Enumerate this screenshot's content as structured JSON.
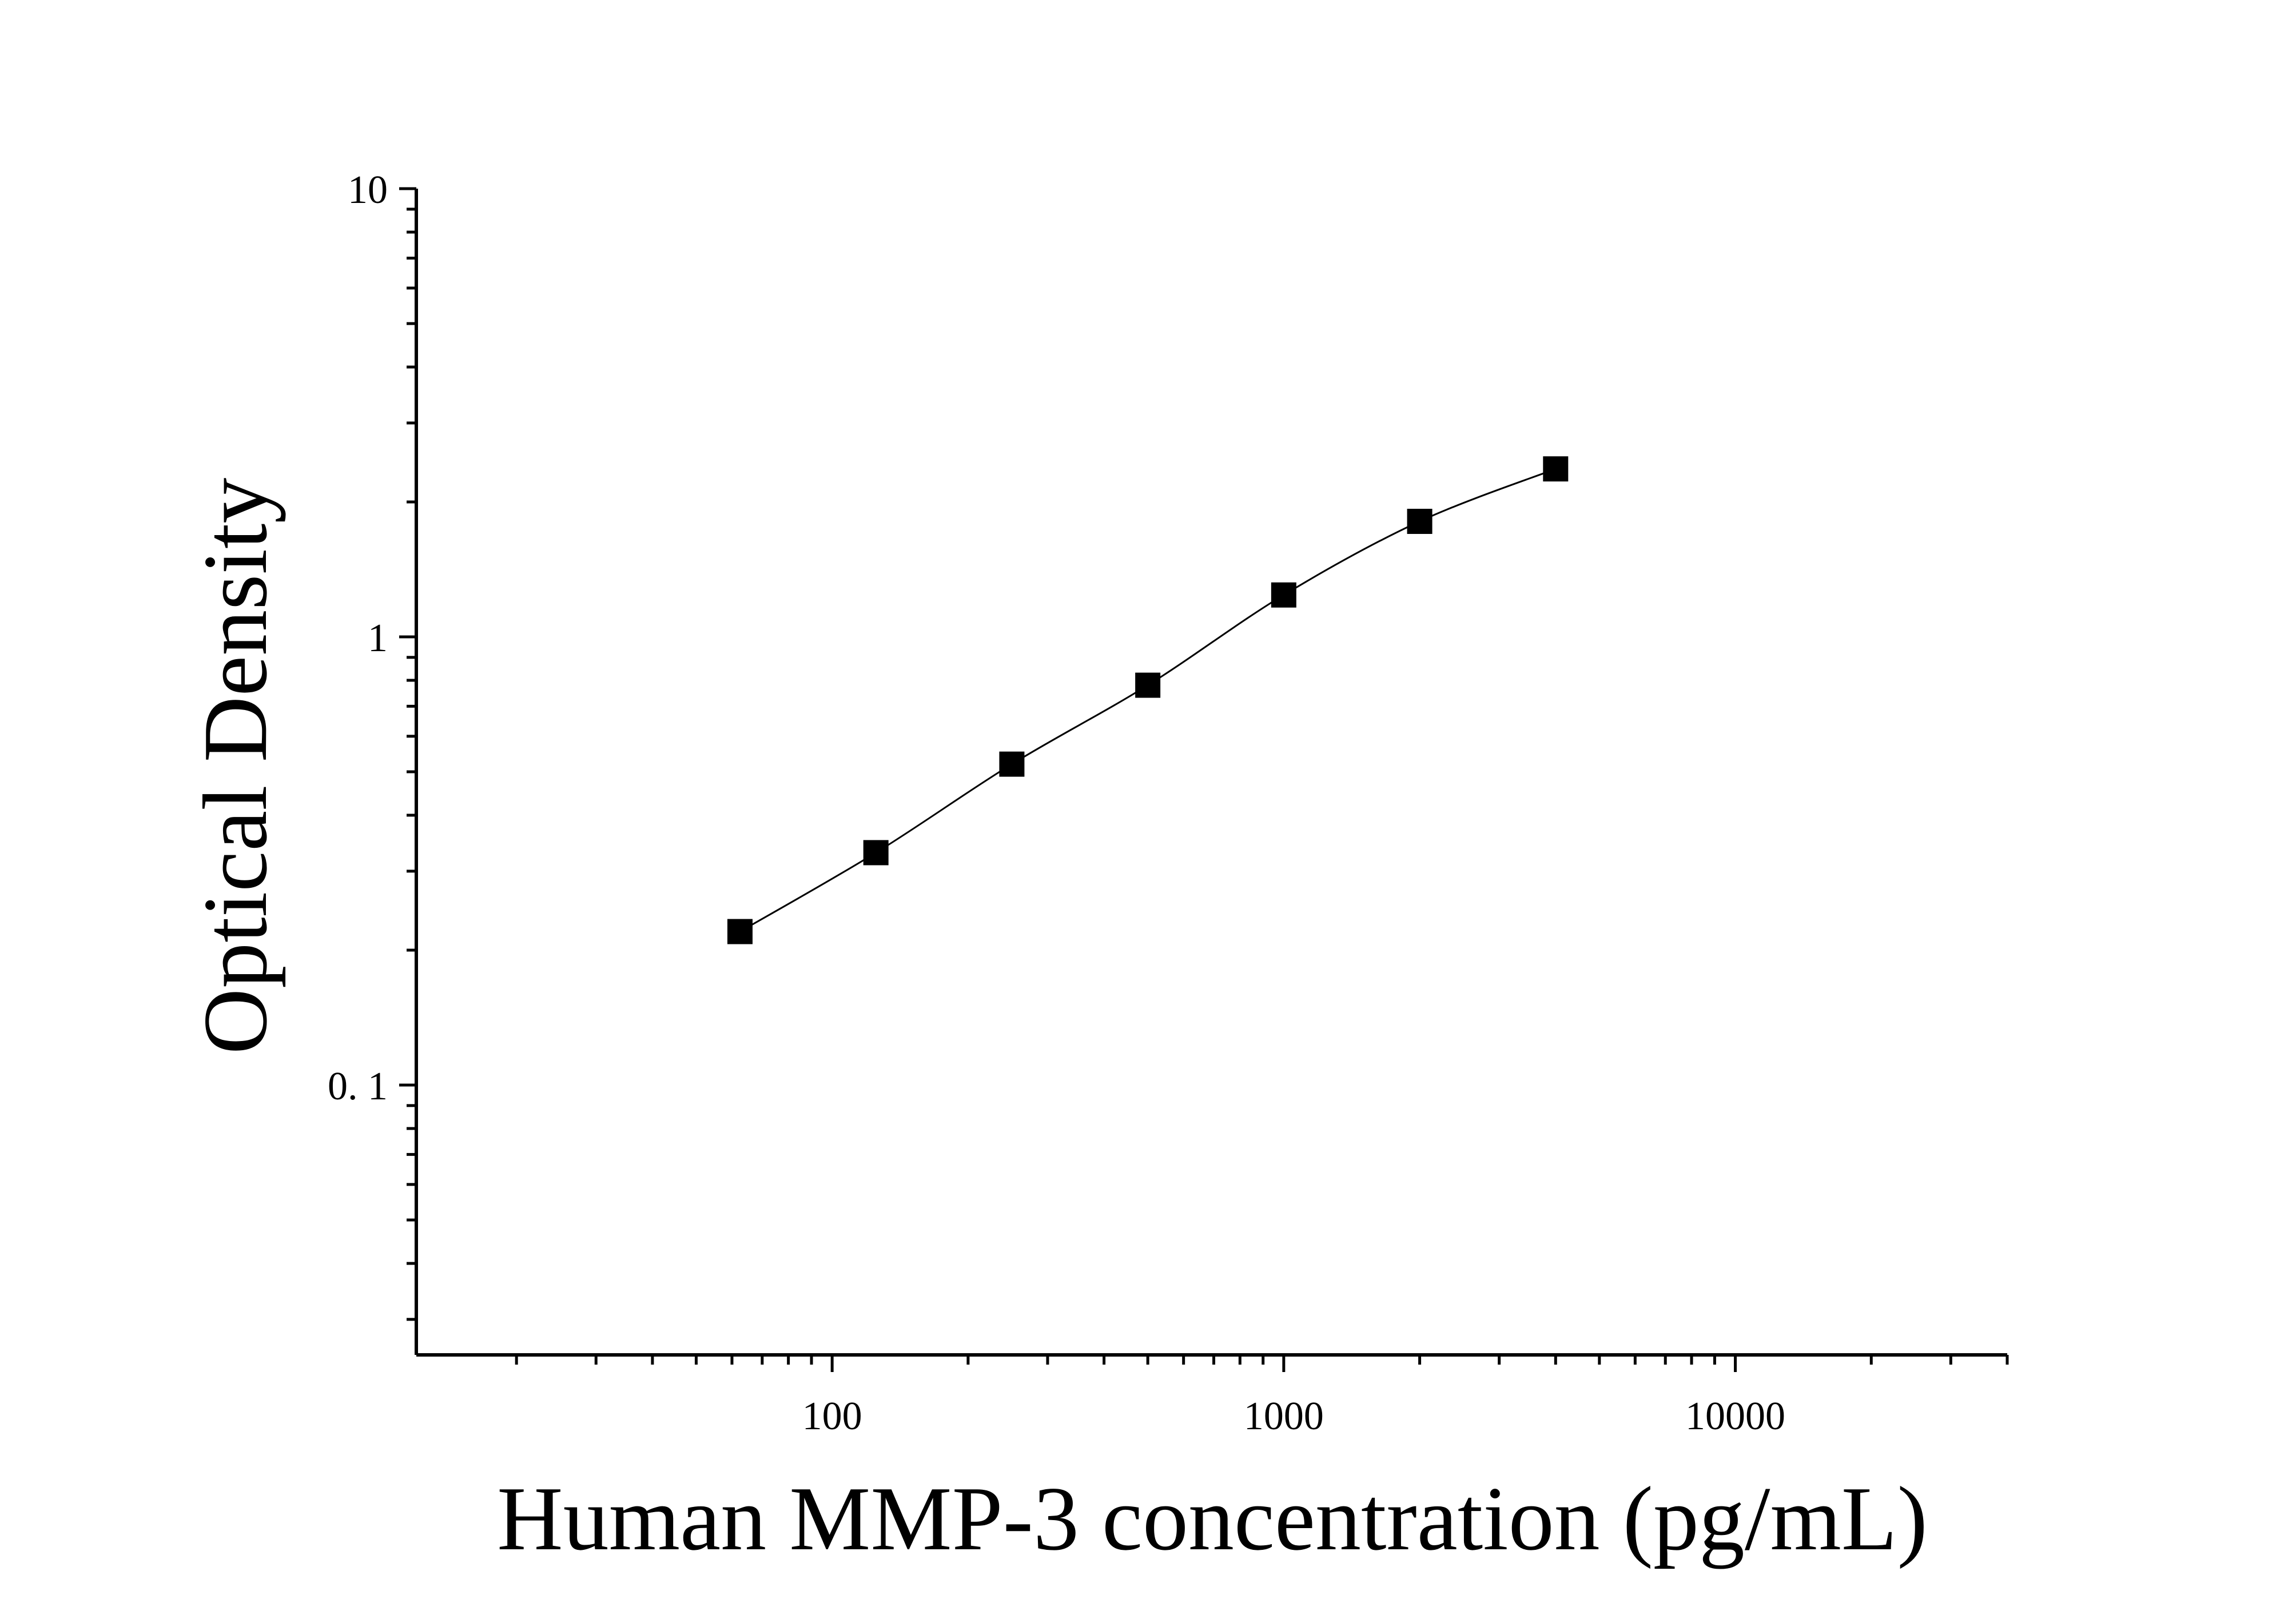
{
  "chart_data": {
    "type": "scatter",
    "title": "",
    "xlabel": "Human MMP-3 concentration (pg/mL)",
    "ylabel": "Optical Density",
    "xscale": "log",
    "yscale": "log",
    "xlim": [
      12,
      40000
    ],
    "ylim": [
      0.025,
      10
    ],
    "x_ticks": [
      {
        "value": 100,
        "label": "100"
      },
      {
        "value": 1000,
        "label": "1000"
      },
      {
        "value": 10000,
        "label": "10000"
      }
    ],
    "y_ticks": [
      {
        "value": 0.1,
        "label": "0. 1"
      },
      {
        "value": 1,
        "label": "1"
      },
      {
        "value": 10,
        "label": "10"
      }
    ],
    "grid": false,
    "legend": "none",
    "marker": "square",
    "color": "#000000",
    "points": [
      {
        "x": 62.5,
        "y": 0.22
      },
      {
        "x": 125,
        "y": 0.33
      },
      {
        "x": 250,
        "y": 0.52
      },
      {
        "x": 500,
        "y": 0.78
      },
      {
        "x": 1000,
        "y": 1.24
      },
      {
        "x": 2000,
        "y": 1.81
      },
      {
        "x": 4000,
        "y": 2.37
      }
    ],
    "fit_curve": true
  }
}
